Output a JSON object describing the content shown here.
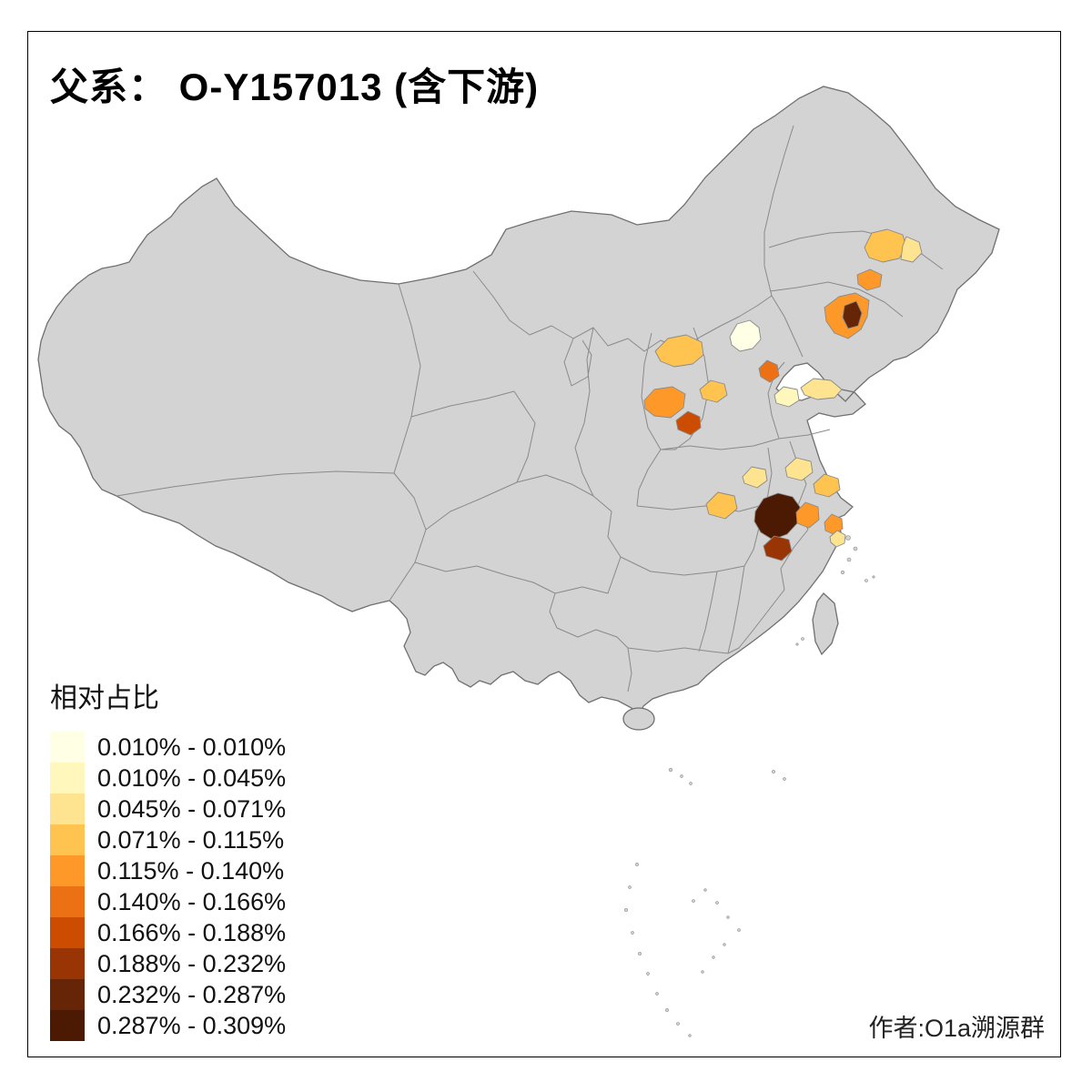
{
  "title": "父系： O-Y157013 (含下游)",
  "credit": "作者:O1a溯源群",
  "legend": {
    "title": "相对占比",
    "entries": [
      {
        "label": "0.010% - 0.010%",
        "color": "#FFFFE5"
      },
      {
        "label": "0.010% - 0.045%",
        "color": "#FFF7BC"
      },
      {
        "label": "0.045% - 0.071%",
        "color": "#FEE391"
      },
      {
        "label": "0.071% - 0.115%",
        "color": "#FEC44F"
      },
      {
        "label": "0.115% - 0.140%",
        "color": "#FE9929"
      },
      {
        "label": "0.140% - 0.166%",
        "color": "#EC7014"
      },
      {
        "label": "0.166% - 0.188%",
        "color": "#CC4C02"
      },
      {
        "label": "0.188% - 0.232%",
        "color": "#993404"
      },
      {
        "label": "0.232% - 0.287%",
        "color": "#662506"
      },
      {
        "label": "0.287% - 0.309%",
        "color": "#4C1A03"
      }
    ]
  },
  "map": {
    "land_color": "#D3D3D3",
    "border_color": "#8A8A8A",
    "sea_color": "#FFFFFF",
    "regions": [
      {
        "name": "jilin-west",
        "bin": "0.071% - 0.115%",
        "color": "#FEC44F"
      },
      {
        "name": "jilin-east",
        "bin": "0.045% - 0.071%",
        "color": "#FEE391"
      },
      {
        "name": "liaoning-north",
        "bin": "0.115% - 0.140%",
        "color": "#FE9929"
      },
      {
        "name": "liaoning-central",
        "bin": "0.115% - 0.140%",
        "color": "#FE9929"
      },
      {
        "name": "liaoning-core",
        "bin": "0.232% - 0.287%",
        "color": "#662506"
      },
      {
        "name": "beijing",
        "bin": "0.010% - 0.010%",
        "color": "#FFFFE5"
      },
      {
        "name": "hebei-northwest",
        "bin": "0.071% - 0.115%",
        "color": "#FEC44F"
      },
      {
        "name": "hebei-central",
        "bin": "0.071% - 0.115%",
        "color": "#FEC44F"
      },
      {
        "name": "shanxi-central",
        "bin": "0.115% - 0.140%",
        "color": "#FE9929"
      },
      {
        "name": "tianjin",
        "bin": "0.140% - 0.166%",
        "color": "#EC7014"
      },
      {
        "name": "shandong-west",
        "bin": "0.010% - 0.045%",
        "color": "#FFF7BC"
      },
      {
        "name": "shandong-peninsula",
        "bin": "0.045% - 0.071%",
        "color": "#FEE391"
      },
      {
        "name": "shanxi-south",
        "bin": "0.166% - 0.188%",
        "color": "#CC4C02"
      },
      {
        "name": "henan-central",
        "bin": "0.045% - 0.071%",
        "color": "#FEE391"
      },
      {
        "name": "jiangsu-north",
        "bin": "0.045% - 0.071%",
        "color": "#FEE391"
      },
      {
        "name": "jiangsu-south",
        "bin": "0.071% - 0.115%",
        "color": "#FEC44F"
      },
      {
        "name": "hubei-north",
        "bin": "0.071% - 0.115%",
        "color": "#FEC44F"
      },
      {
        "name": "anhui-central",
        "bin": "0.287% - 0.309%",
        "color": "#4C1A03"
      },
      {
        "name": "anhui-east",
        "bin": "0.115% - 0.140%",
        "color": "#FE9929"
      },
      {
        "name": "shanghai",
        "bin": "0.115% - 0.140%",
        "color": "#FE9929"
      },
      {
        "name": "zhejiang-north",
        "bin": "0.045% - 0.071%",
        "color": "#FEE391"
      },
      {
        "name": "anhui-southwest",
        "bin": "0.188% - 0.232%",
        "color": "#993404"
      }
    ]
  }
}
